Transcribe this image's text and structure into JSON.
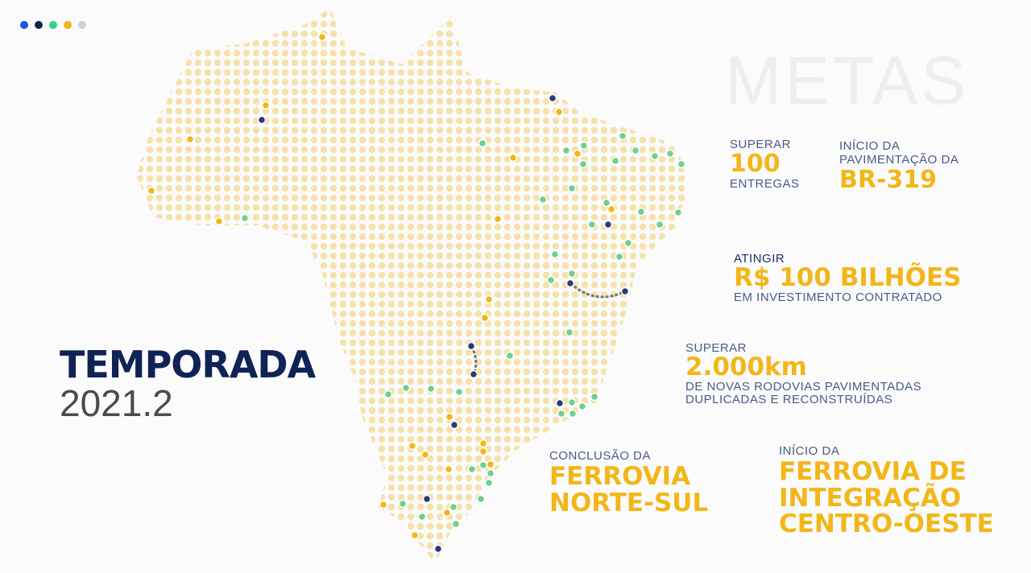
{
  "colors": {
    "blue": "#1857d8",
    "navy": "#0f2356",
    "green": "#34d08a",
    "yellow": "#f2b618",
    "grey": "#d0d0d3"
  },
  "page_dots": [
    "#1857d8",
    "#0f2356",
    "#34d08a",
    "#f2b618",
    "#d0d0d3"
  ],
  "watermark": "METAS",
  "season": {
    "title": "TEMPORADA",
    "year": "2021.2"
  },
  "goals": [
    {
      "pre": "SUPERAR",
      "value": "100",
      "post": "ENTREGAS"
    },
    {
      "pre": "INÍCIO DA\nPAVIMENTAÇÃO DA",
      "value": "BR-319"
    },
    {
      "pre": "ATINGIR",
      "value": "R$ 100 BILHÕES",
      "post": "EM INVESTIMENTO CONTRATADO"
    },
    {
      "pre": "SUPERAR",
      "value": "2.000km",
      "post": "DE NOVAS RODOVIAS PAVIMENTADAS\nDUPLICADAS E RECONSTRUÍDAS"
    },
    {
      "pre": "CONCLUSÃO DA",
      "value": "FERROVIA\nNORTE-SUL"
    },
    {
      "pre": "INÍCIO DA",
      "value": "FERROVIA DE\nINTEGRAÇÃO\nCENTRO-OESTE"
    }
  ]
}
